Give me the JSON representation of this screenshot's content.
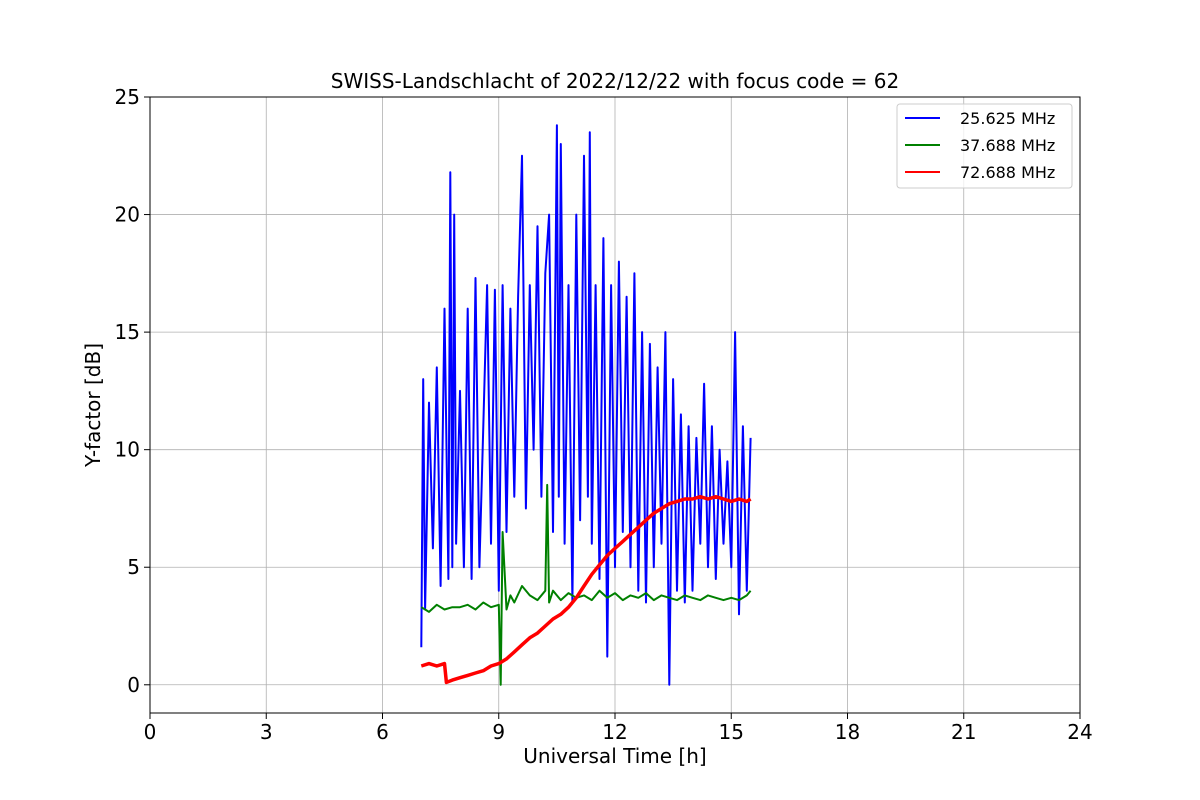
{
  "chart_data": {
    "type": "line",
    "title": "SWISS-Landschlacht of 2022/12/22 with focus code = 62",
    "xlabel": "Universal Time [h]",
    "ylabel": "Y-factor [dB]",
    "xlim": [
      0,
      24
    ],
    "ylim": [
      -1.2,
      25
    ],
    "xticks": [
      0,
      3,
      6,
      9,
      12,
      15,
      18,
      21,
      24
    ],
    "yticks": [
      0,
      5,
      10,
      15,
      20,
      25
    ],
    "grid": true,
    "legend_position": "top-right",
    "series": [
      {
        "name": "25.625 MHz",
        "color": "#0000ff",
        "x": [
          7.0,
          7.05,
          7.1,
          7.2,
          7.3,
          7.4,
          7.5,
          7.6,
          7.7,
          7.75,
          7.8,
          7.85,
          7.9,
          8.0,
          8.1,
          8.2,
          8.3,
          8.4,
          8.5,
          8.6,
          8.7,
          8.8,
          8.9,
          9.0,
          9.1,
          9.2,
          9.3,
          9.4,
          9.5,
          9.6,
          9.7,
          9.8,
          9.9,
          10.0,
          10.1,
          10.2,
          10.3,
          10.4,
          10.5,
          10.55,
          10.6,
          10.7,
          10.8,
          10.9,
          11.0,
          11.1,
          11.2,
          11.3,
          11.35,
          11.4,
          11.5,
          11.6,
          11.7,
          11.8,
          11.9,
          12.0,
          12.1,
          12.2,
          12.3,
          12.4,
          12.5,
          12.6,
          12.7,
          12.8,
          12.9,
          13.0,
          13.1,
          13.2,
          13.3,
          13.4,
          13.5,
          13.6,
          13.7,
          13.8,
          13.9,
          14.0,
          14.1,
          14.2,
          14.3,
          14.4,
          14.5,
          14.6,
          14.7,
          14.8,
          14.9,
          15.0,
          15.1,
          15.2,
          15.3,
          15.4,
          15.5
        ],
        "y": [
          1.6,
          13.0,
          3.2,
          12.0,
          5.8,
          13.5,
          4.2,
          16.0,
          4.5,
          21.8,
          5.0,
          20.0,
          6.0,
          12.5,
          5.0,
          16.0,
          4.5,
          17.3,
          5.0,
          11.0,
          17.0,
          6.0,
          16.8,
          4.0,
          17.0,
          6.5,
          16.0,
          8.0,
          16.5,
          22.5,
          7.5,
          17.0,
          10.0,
          19.5,
          8.0,
          17.5,
          20.0,
          6.5,
          23.8,
          8.0,
          23.0,
          6.0,
          17.0,
          3.5,
          20.0,
          7.0,
          22.5,
          8.0,
          23.5,
          6.0,
          17.0,
          4.5,
          19.0,
          1.2,
          17.0,
          5.0,
          18.0,
          6.5,
          16.5,
          5.0,
          17.5,
          4.0,
          15.0,
          3.5,
          14.5,
          5.0,
          13.5,
          6.0,
          15.0,
          0.0,
          13.0,
          4.0,
          11.5,
          3.5,
          11.0,
          4.0,
          10.5,
          6.0,
          12.8,
          5.0,
          11.0,
          4.5,
          10.0,
          6.0,
          9.5,
          5.0,
          15.0,
          3.0,
          11.0,
          4.0,
          10.5
        ]
      },
      {
        "name": "37.688 MHz",
        "color": "#008000",
        "x": [
          7.0,
          7.2,
          7.4,
          7.6,
          7.8,
          8.0,
          8.2,
          8.4,
          8.6,
          8.8,
          9.0,
          9.05,
          9.1,
          9.2,
          9.3,
          9.4,
          9.6,
          9.8,
          10.0,
          10.2,
          10.25,
          10.3,
          10.4,
          10.6,
          10.8,
          11.0,
          11.2,
          11.4,
          11.6,
          11.8,
          12.0,
          12.2,
          12.4,
          12.6,
          12.8,
          13.0,
          13.2,
          13.4,
          13.6,
          13.8,
          14.0,
          14.2,
          14.4,
          14.6,
          14.8,
          15.0,
          15.2,
          15.4,
          15.5
        ],
        "y": [
          3.3,
          3.1,
          3.4,
          3.2,
          3.3,
          3.3,
          3.4,
          3.2,
          3.5,
          3.3,
          3.4,
          0.0,
          6.5,
          3.2,
          3.8,
          3.5,
          4.2,
          3.8,
          3.6,
          4.0,
          8.5,
          3.5,
          4.0,
          3.6,
          3.9,
          3.7,
          3.8,
          3.6,
          4.0,
          3.7,
          3.9,
          3.6,
          3.8,
          3.7,
          3.9,
          3.6,
          3.8,
          3.7,
          3.6,
          3.8,
          3.7,
          3.6,
          3.8,
          3.7,
          3.6,
          3.7,
          3.6,
          3.8,
          4.0
        ]
      },
      {
        "name": "72.688 MHz",
        "color": "#ff0000",
        "x": [
          7.0,
          7.2,
          7.4,
          7.6,
          7.65,
          7.8,
          8.0,
          8.2,
          8.4,
          8.6,
          8.8,
          9.0,
          9.2,
          9.4,
          9.6,
          9.8,
          10.0,
          10.2,
          10.4,
          10.6,
          10.8,
          11.0,
          11.2,
          11.4,
          11.6,
          11.8,
          12.0,
          12.2,
          12.4,
          12.6,
          12.8,
          13.0,
          13.2,
          13.4,
          13.6,
          13.8,
          14.0,
          14.2,
          14.4,
          14.6,
          14.8,
          15.0,
          15.2,
          15.4,
          15.5
        ],
        "y": [
          0.8,
          0.9,
          0.8,
          0.9,
          0.1,
          0.2,
          0.3,
          0.4,
          0.5,
          0.6,
          0.8,
          0.9,
          1.1,
          1.4,
          1.7,
          2.0,
          2.2,
          2.5,
          2.8,
          3.0,
          3.3,
          3.7,
          4.2,
          4.7,
          5.1,
          5.5,
          5.8,
          6.1,
          6.4,
          6.7,
          7.0,
          7.3,
          7.5,
          7.7,
          7.8,
          7.9,
          7.9,
          8.0,
          7.9,
          8.0,
          7.9,
          7.8,
          7.9,
          7.8,
          7.9
        ]
      }
    ]
  }
}
